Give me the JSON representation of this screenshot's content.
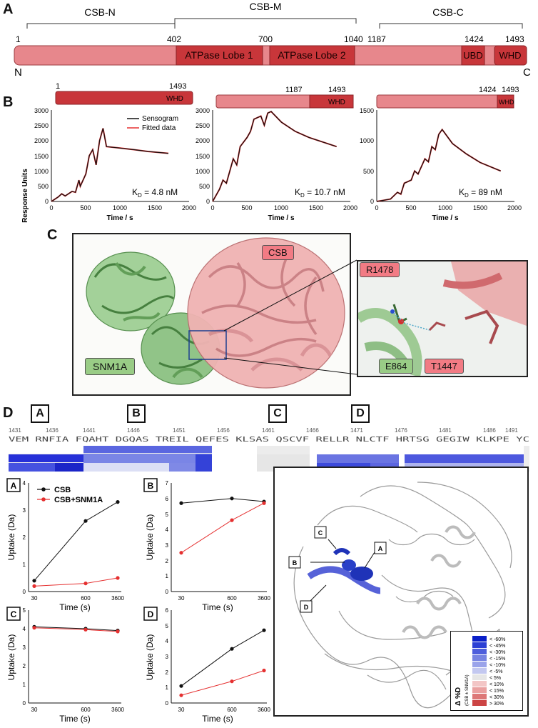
{
  "panels": {
    "a": "A",
    "b": "B",
    "c": "C",
    "d": "D"
  },
  "domain_map": {
    "regions": [
      {
        "label": "CSB-N",
        "start": "1",
        "end": "402"
      },
      {
        "label": "CSB-M",
        "start": "402",
        "end": "1040"
      },
      {
        "label": "CSB-C",
        "start": "1187",
        "end": "1493"
      }
    ],
    "positions": [
      "1",
      "402",
      "700",
      "1040",
      "1187",
      "1424",
      "1493"
    ],
    "domains": [
      "ATPase Lobe 1",
      "ATPase Lobe 2",
      "UBD",
      "WHD"
    ],
    "n_term": "N",
    "c_term": "C"
  },
  "spr": {
    "legend": [
      "Sensogram",
      "Fitted data"
    ],
    "ylabel": "Response Units",
    "xlabel": "Time / s",
    "constructs": [
      {
        "start": "1",
        "end": "1493",
        "domain": "WHD",
        "kd_prefix": "K",
        "kd_sub": "D",
        "kd_value": " = 4.8 nM"
      },
      {
        "start": "1187",
        "end": "1493",
        "domain": "WHD",
        "kd_prefix": "K",
        "kd_sub": "D",
        "kd_value": " = 10.7 nM"
      },
      {
        "start": "1424",
        "end": "1493",
        "domain": "WHD",
        "kd_prefix": "K",
        "kd_sub": "D",
        "kd_value": " = 89 nM"
      }
    ]
  },
  "structure": {
    "csb": "CSB",
    "snm1a": "SNM1A",
    "inset_residues": [
      "R1478",
      "E864",
      "T1447"
    ]
  },
  "hdx": {
    "segments": [
      "A",
      "B",
      "C",
      "D"
    ],
    "numbers": [
      "1431",
      "1436",
      "1441",
      "1446",
      "1451",
      "1456",
      "1461",
      "1466",
      "1471",
      "1476",
      "1481",
      "1486",
      "1491"
    ],
    "sequence": "VEM RNFIA FQAHT DGQAS TREIL QEFES KLSAS QSCVF RELLR NLCTF HRTSG GEGIW KLKPE YC",
    "plot_xlabel": "Time (s)",
    "plot_ylabel": "Uptake (Da)",
    "series": [
      "CSB",
      "CSB+SNM1A"
    ],
    "colors": {
      "csb": "#111111",
      "complex": "#e53030"
    },
    "xticks": [
      "30",
      "600",
      "3600"
    ],
    "legend_title": "Δ %D",
    "legend_subtitle": "(CSB ± SNM1A)",
    "legend_items": [
      "< -60%",
      "< -45%",
      "< -30%",
      "< -15%",
      "< -10%",
      "< -5%",
      "< 5%",
      "< 10%",
      "< 15%",
      "< 30%",
      "> 30%"
    ],
    "legend_colors": [
      "#0a1fc8",
      "#2b3fd4",
      "#4d5edc",
      "#7784e2",
      "#9aa3ea",
      "#c3c8f0",
      "#e6e6e6",
      "#f3c6c6",
      "#eaa0a0",
      "#dd7777",
      "#cc4444"
    ],
    "struct_labels": [
      "C",
      "A",
      "B",
      "D"
    ]
  },
  "chart_data": [
    {
      "type": "line",
      "title": "",
      "xlabel": "Time / s",
      "ylabel": "Response Units",
      "xlim": [
        0,
        2000
      ],
      "ylim": [
        0,
        3000
      ],
      "series": [
        {
          "name": "Sensogram",
          "x": [
            0,
            100,
            150,
            200,
            300,
            350,
            400,
            420,
            500,
            550,
            600,
            650,
            700,
            750,
            800,
            1000,
            1200,
            1400,
            1700
          ],
          "values": [
            0,
            150,
            250,
            180,
            330,
            300,
            700,
            500,
            900,
            1500,
            1700,
            1200,
            2000,
            2400,
            1800,
            1750,
            1700,
            1640,
            1580
          ]
        }
      ]
    },
    {
      "type": "line",
      "title": "",
      "xlabel": "Time / s",
      "ylabel": "",
      "xlim": [
        0,
        2000
      ],
      "ylim": [
        0,
        3000
      ],
      "series": [
        {
          "name": "Sensogram",
          "x": [
            0,
            100,
            150,
            200,
            300,
            350,
            400,
            500,
            550,
            600,
            700,
            750,
            800,
            850,
            1000,
            1200,
            1400,
            1600,
            1800
          ],
          "values": [
            0,
            400,
            700,
            600,
            1400,
            1200,
            1800,
            2100,
            2300,
            2700,
            2800,
            2500,
            2900,
            2950,
            2600,
            2300,
            2100,
            1950,
            1800
          ]
        }
      ]
    },
    {
      "type": "line",
      "title": "",
      "xlabel": "Time / s",
      "ylabel": "",
      "xlim": [
        0,
        2000
      ],
      "ylim": [
        0,
        1500
      ],
      "series": [
        {
          "name": "Sensogram",
          "x": [
            0,
            100,
            200,
            300,
            350,
            400,
            500,
            550,
            600,
            700,
            750,
            800,
            850,
            900,
            950,
            1100,
            1300,
            1500,
            1800
          ],
          "values": [
            0,
            20,
            40,
            150,
            120,
            300,
            350,
            500,
            450,
            700,
            650,
            900,
            850,
            1100,
            1180,
            950,
            780,
            640,
            500
          ]
        }
      ]
    },
    {
      "type": "line",
      "title": "A",
      "xlabel": "Time (s)",
      "ylabel": "Uptake (Da)",
      "categories": [
        "30",
        "600",
        "3600"
      ],
      "ylim": [
        0,
        4
      ],
      "series": [
        {
          "name": "CSB",
          "values": [
            0.4,
            2.6,
            3.3
          ]
        },
        {
          "name": "CSB+SNM1A",
          "values": [
            0.2,
            0.3,
            0.5
          ]
        }
      ]
    },
    {
      "type": "line",
      "title": "B",
      "xlabel": "Time (s)",
      "ylabel": "Uptake (Da)",
      "categories": [
        "30",
        "600",
        "3600"
      ],
      "ylim": [
        0,
        7
      ],
      "series": [
        {
          "name": "CSB",
          "values": [
            5.7,
            6.0,
            5.8
          ]
        },
        {
          "name": "CSB+SNM1A",
          "values": [
            2.5,
            4.6,
            5.7
          ]
        }
      ]
    },
    {
      "type": "line",
      "title": "C",
      "xlabel": "Time (s)",
      "ylabel": "Uptake (Da)",
      "categories": [
        "30",
        "600",
        "3600"
      ],
      "ylim": [
        0,
        5
      ],
      "series": [
        {
          "name": "CSB",
          "values": [
            4.1,
            4.0,
            3.9
          ]
        },
        {
          "name": "CSB+SNM1A",
          "values": [
            4.05,
            3.95,
            3.85
          ]
        }
      ]
    },
    {
      "type": "line",
      "title": "D",
      "xlabel": "Time (s)",
      "ylabel": "Uptake (Da)",
      "categories": [
        "30",
        "600",
        "3600"
      ],
      "ylim": [
        0,
        6
      ],
      "series": [
        {
          "name": "CSB",
          "values": [
            1.1,
            3.5,
            4.7
          ]
        },
        {
          "name": "CSB+SNM1A",
          "values": [
            0.5,
            1.4,
            2.1
          ]
        }
      ]
    }
  ]
}
